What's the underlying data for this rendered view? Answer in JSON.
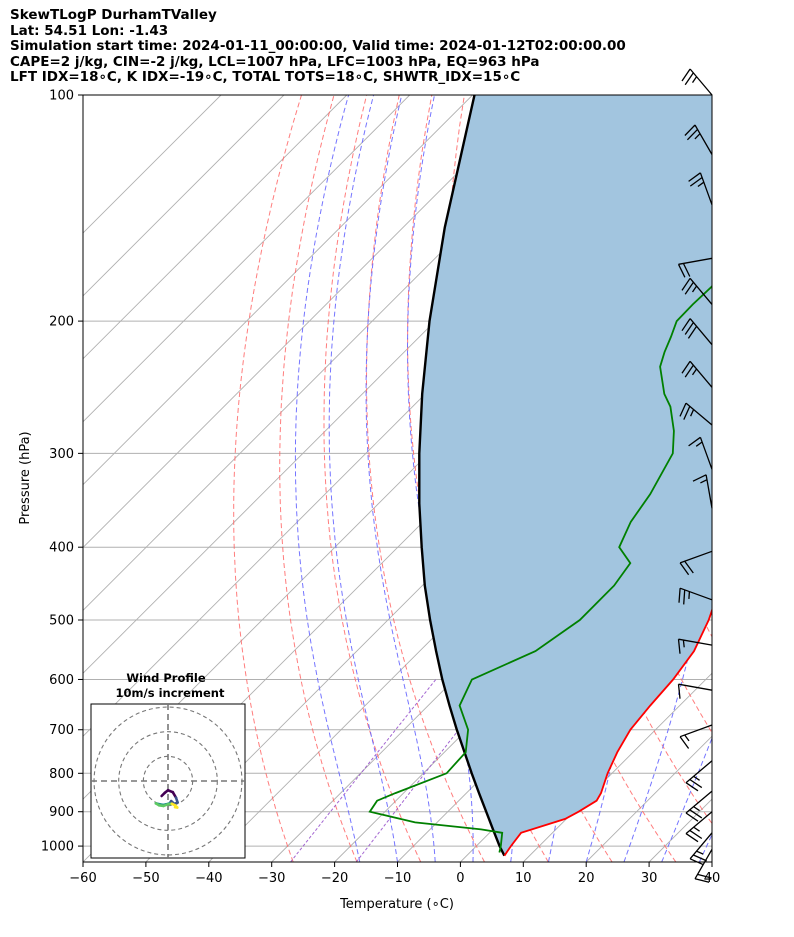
{
  "header": {
    "line1": "SkewTLogP DurhamTValley",
    "line2": "Lat: 54.51   Lon: -1.43",
    "line3": "Simulation start time: 2024-01-11_00:00:00, Valid time: 2024-01-12T02:00:00.00",
    "line4": "CAPE=2 j/kg, CIN=-2 j/kg, LCL=1007 hPa, LFC=1003 hPa, EQ=963 hPa",
    "line5": "LFT IDX=18∘C, K IDX=-19∘C, TOTAL TOTS=18∘C, SHWTR_IDX=15∘C"
  },
  "chart_data": {
    "type": "line",
    "subtype": "skew-T log-P",
    "xlabel": "Temperature (∘C)",
    "ylabel": "Pressure (hPa)",
    "xlim": [
      -60,
      40
    ],
    "ylim": [
      1050,
      100
    ],
    "y_scale": "log",
    "skew_deg": 45,
    "grid": true,
    "xticks": [
      -60,
      -50,
      -40,
      -30,
      -20,
      -10,
      0,
      10,
      20,
      30,
      40
    ],
    "yticks": [
      100,
      200,
      300,
      400,
      500,
      600,
      700,
      800,
      900,
      1000
    ],
    "colors": {
      "temperature": "#ff0000",
      "dewpoint": "#008000",
      "parcel": "#000000",
      "cape_fill": "#a2c5df",
      "dry_adiabat": "#ff6666",
      "moist_adiabat": "#6666ff",
      "mixing_ratio": "#9955cc",
      "isotherm": "#b0b0b0"
    },
    "series": [
      {
        "key": "temperature",
        "points": [
          [
            1030,
            6.0
          ],
          [
            1000,
            5.5
          ],
          [
            960,
            5.0
          ],
          [
            920,
            9.8
          ],
          [
            900,
            10.8
          ],
          [
            870,
            11.9
          ],
          [
            850,
            11.4
          ],
          [
            800,
            9.3
          ],
          [
            750,
            7.5
          ],
          [
            700,
            6.0
          ],
          [
            650,
            5.3
          ],
          [
            600,
            4.8
          ],
          [
            550,
            3.6
          ],
          [
            500,
            1.0
          ],
          [
            450,
            -2.6
          ],
          [
            400,
            -7.2
          ],
          [
            350,
            -12.0
          ],
          [
            300,
            -17.4
          ],
          [
            270,
            -21.2
          ],
          [
            250,
            -23.9
          ],
          [
            225,
            -28.4
          ],
          [
            200,
            -33.4
          ],
          [
            190,
            -35.7
          ],
          [
            180,
            -38.0
          ],
          [
            170,
            -40.5
          ],
          [
            160,
            -42.6
          ],
          [
            150,
            -44.6
          ],
          [
            140,
            -46.8
          ],
          [
            130,
            -49.0
          ],
          [
            120,
            -50.5
          ],
          [
            110,
            -52.4
          ],
          [
            105,
            -52.9
          ],
          [
            100,
            -53.8
          ]
        ]
      },
      {
        "key": "dewpoint",
        "points": [
          [
            1020,
            4.7
          ],
          [
            1000,
            3.9
          ],
          [
            960,
            2.0
          ],
          [
            950,
            -1.9
          ],
          [
            930,
            -13.5
          ],
          [
            900,
            -22.4
          ],
          [
            870,
            -23.0
          ],
          [
            850,
            -21.3
          ],
          [
            800,
            -16.3
          ],
          [
            750,
            -16.6
          ],
          [
            700,
            -19.8
          ],
          [
            650,
            -25.0
          ],
          [
            600,
            -27.2
          ],
          [
            550,
            -21.6
          ],
          [
            500,
            -19.5
          ],
          [
            450,
            -19.5
          ],
          [
            420,
            -20.5
          ],
          [
            400,
            -24.8
          ],
          [
            370,
            -27.0
          ],
          [
            340,
            -28.3
          ],
          [
            300,
            -31.2
          ],
          [
            280,
            -34.6
          ],
          [
            260,
            -39.0
          ],
          [
            250,
            -42.0
          ],
          [
            230,
            -47.0
          ],
          [
            220,
            -48.6
          ],
          [
            210,
            -50.0
          ],
          [
            200,
            -51.6
          ],
          [
            190,
            -51.7
          ],
          [
            180,
            -51.5
          ],
          [
            170,
            -52.7
          ],
          [
            160,
            -55.6
          ],
          [
            150,
            -58.0
          ],
          [
            140,
            -61.0
          ],
          [
            130,
            -61.6
          ],
          [
            120,
            -60.3
          ],
          [
            110,
            -59.0
          ],
          [
            100,
            -58.0
          ]
        ]
      },
      {
        "key": "parcel",
        "points": [
          [
            1030,
            6.0
          ],
          [
            1000,
            3.7
          ],
          [
            950,
            0.0
          ],
          [
            900,
            -3.9
          ],
          [
            850,
            -8.0
          ],
          [
            800,
            -12.3
          ],
          [
            750,
            -16.8
          ],
          [
            700,
            -21.6
          ],
          [
            650,
            -26.6
          ],
          [
            600,
            -31.9
          ],
          [
            550,
            -37.4
          ],
          [
            500,
            -43.3
          ],
          [
            450,
            -49.6
          ],
          [
            400,
            -56.2
          ],
          [
            350,
            -63.5
          ],
          [
            300,
            -71.5
          ],
          [
            250,
            -80.5
          ],
          [
            200,
            -90.9
          ],
          [
            150,
            -103.4
          ],
          [
            100,
            -119.7
          ]
        ]
      }
    ],
    "hodograph": {
      "title": "Wind Profile",
      "subtitle": "10m/s increment",
      "rings_ms": [
        10,
        20,
        30
      ],
      "trace": [
        [
          -2,
          0
        ],
        [
          -1,
          1
        ],
        [
          0,
          1.8
        ],
        [
          1.5,
          1.2
        ],
        [
          2.5,
          -0.5
        ],
        [
          3,
          -2
        ],
        [
          2,
          -2.5
        ],
        [
          1,
          -1.6
        ],
        [
          0.5,
          -2.3
        ],
        [
          -0.6,
          -2.6
        ],
        [
          -1.5,
          -2.8
        ],
        [
          -2.6,
          -2.6
        ],
        [
          -3.8,
          -2.3
        ],
        [
          -2.8,
          -2.9
        ],
        [
          -1.4,
          -3.1
        ],
        [
          0,
          -2.6
        ],
        [
          1.2,
          -2.4
        ],
        [
          2.2,
          -2.9
        ],
        [
          2.9,
          -3.6
        ],
        [
          2.2,
          -3.5
        ]
      ]
    },
    "wind_barbs": [
      {
        "p": 100,
        "dir": 320,
        "spd": 25
      },
      {
        "p": 120,
        "dir": 330,
        "spd": 25
      },
      {
        "p": 140,
        "dir": 340,
        "spd": 25
      },
      {
        "p": 165,
        "dir": 260,
        "spd": 20
      },
      {
        "p": 190,
        "dir": 320,
        "spd": 25
      },
      {
        "p": 215,
        "dir": 320,
        "spd": 30
      },
      {
        "p": 245,
        "dir": 320,
        "spd": 25
      },
      {
        "p": 275,
        "dir": 310,
        "spd": 25
      },
      {
        "p": 315,
        "dir": 340,
        "spd": 15
      },
      {
        "p": 355,
        "dir": 350,
        "spd": 15
      },
      {
        "p": 405,
        "dir": 250,
        "spd": 20
      },
      {
        "p": 470,
        "dir": 290,
        "spd": 25
      },
      {
        "p": 540,
        "dir": 280,
        "spd": 15
      },
      {
        "p": 620,
        "dir": 280,
        "spd": 10
      },
      {
        "p": 690,
        "dir": 250,
        "spd": 15
      },
      {
        "p": 770,
        "dir": 230,
        "spd": 25
      },
      {
        "p": 845,
        "dir": 230,
        "spd": 25
      },
      {
        "p": 900,
        "dir": 230,
        "spd": 25
      },
      {
        "p": 960,
        "dir": 220,
        "spd": 25
      },
      {
        "p": 1010,
        "dir": 210,
        "spd": 20
      }
    ]
  }
}
